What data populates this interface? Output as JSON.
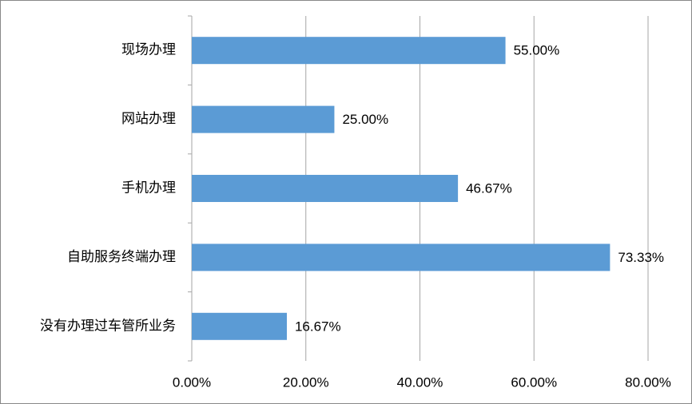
{
  "chart_data": {
    "type": "barh",
    "categories": [
      "现场办理",
      "网站办理",
      "手机办理",
      "自助服务终端办理",
      "没有办理过车管所业务"
    ],
    "values": [
      55,
      25,
      46.67,
      73.33,
      16.67
    ],
    "value_labels": [
      "55.00%",
      "25.00%",
      "46.67%",
      "73.33%",
      "16.67%"
    ],
    "color": "#5b9bd5",
    "xlim": [
      0,
      80
    ],
    "xticks": [
      {
        "value": 0,
        "label": "0.00%"
      },
      {
        "value": 20,
        "label": "20.00%"
      },
      {
        "value": 40,
        "label": "40.00%"
      },
      {
        "value": 60,
        "label": "60.00%"
      },
      {
        "value": 80,
        "label": "80.00%"
      }
    ],
    "grid": true
  }
}
